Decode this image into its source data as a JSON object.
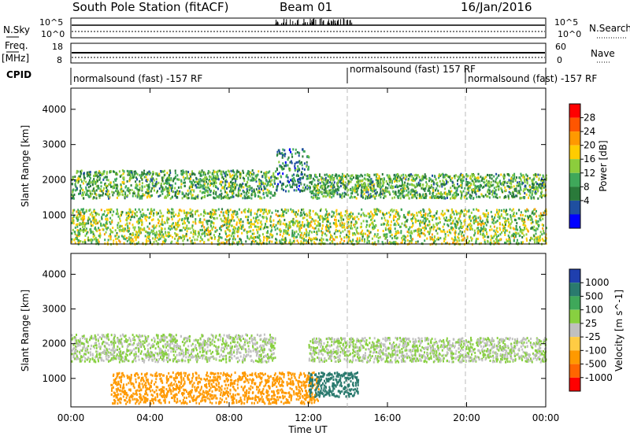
{
  "header": {
    "station": "South Pole Station (fitACF)",
    "beam": "Beam 01",
    "date": "16/Jan/2016"
  },
  "top_panels": {
    "nsky_label": "N.Sky",
    "nsky_ticks": [
      "10^5",
      "10^0"
    ],
    "nsearch_label": "N.Search",
    "nsearch_ticks": [
      "10^5",
      "10^0"
    ],
    "freq_label_1": "Freq.",
    "freq_label_2": "[MHz]",
    "freq_ticks": [
      "18",
      "8"
    ],
    "nave_label": "Nave",
    "nave_ticks": [
      "60",
      "0"
    ],
    "cpid_label": "CPID"
  },
  "cpid_segments": [
    {
      "start": "00:00",
      "label": "normalsound (fast) -157 RF"
    },
    {
      "start": "14:00",
      "label": "normalsound (fast) 157 RF"
    },
    {
      "start": "20:00",
      "label": "normalsound (fast) -157 RF"
    }
  ],
  "chart_data": [
    {
      "type": "heatmap",
      "quantity": "Power",
      "xlabel": "Time UT",
      "ylabel": "Slant Range [km]",
      "x_ticks": [
        "00:00",
        "04:00",
        "08:00",
        "12:00",
        "16:00",
        "20:00",
        "00:00"
      ],
      "y_ticks": [
        1000,
        2000,
        3000,
        4000
      ],
      "ylim": [
        180,
        4600
      ],
      "colorbar_label": "Power [dB]",
      "colorbar_ticks": [
        4,
        8,
        12,
        16,
        20,
        24,
        28
      ],
      "colorbar_colors": [
        "#0000ff",
        "#1f4fa0",
        "#2a7a3a",
        "#3fa85a",
        "#8ccd3c",
        "#ffcc00",
        "#ff9900",
        "#ff5500",
        "#ff0000"
      ],
      "echo_bands": [
        {
          "t0": 0.0,
          "t1": 10.3,
          "r0": 1500,
          "r1": 2300,
          "value": 14
        },
        {
          "t0": 10.3,
          "t1": 12.0,
          "r0": 1700,
          "r1": 2900,
          "value": 10
        },
        {
          "t0": 12.0,
          "t1": 24.0,
          "r0": 1500,
          "r1": 2200,
          "value": 14
        },
        {
          "t0": 0.0,
          "t1": 24.0,
          "r0": 200,
          "r1": 1200,
          "value": 18
        }
      ]
    },
    {
      "type": "heatmap",
      "quantity": "Velocity",
      "xlabel": "Time UT",
      "ylabel": "Slant Range [km]",
      "x_ticks": [
        "00:00",
        "04:00",
        "08:00",
        "12:00",
        "16:00",
        "20:00",
        "00:00"
      ],
      "y_ticks": [
        1000,
        2000,
        3000,
        4000
      ],
      "ylim": [
        180,
        4600
      ],
      "colorbar_label": "Velocity [m s^-1]",
      "colorbar_ticks": [
        1000,
        500,
        100,
        25,
        -25,
        -100,
        -500,
        -1000
      ],
      "colorbar_colors": [
        "#1f3fae",
        "#2a7a6e",
        "#3fa85a",
        "#88d040",
        "#c0c0c0",
        "#ffcc44",
        "#ff9900",
        "#ff6600",
        "#ff0000"
      ],
      "echo_bands": [
        {
          "t0": 0.0,
          "t1": 10.3,
          "r0": 1500,
          "r1": 2300,
          "value": 0
        },
        {
          "t0": 12.0,
          "t1": 24.0,
          "r0": 1500,
          "r1": 2200,
          "value": 0
        },
        {
          "t0": 2.0,
          "t1": 12.5,
          "r0": 300,
          "r1": 1200,
          "value": -300
        },
        {
          "t0": 12.0,
          "t1": 14.5,
          "r0": 500,
          "r1": 1200,
          "value": 300
        }
      ]
    }
  ]
}
